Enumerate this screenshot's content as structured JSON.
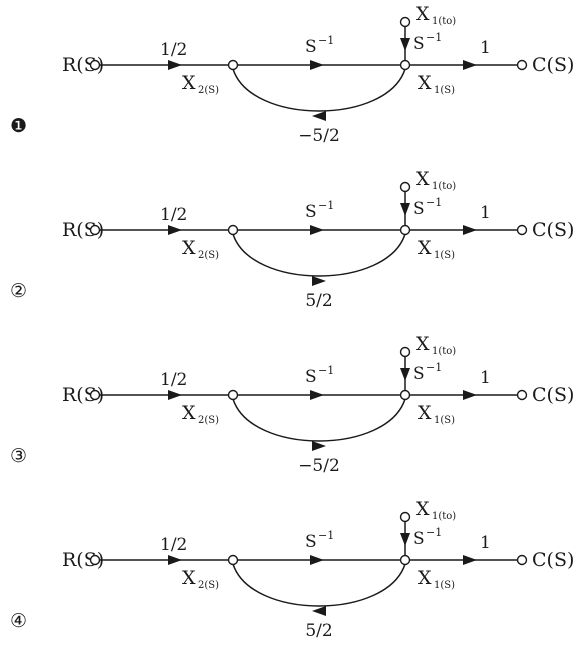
{
  "options": [
    {
      "marker": "❶",
      "input": "R(S)",
      "output": "C(S)",
      "gain_in": "1/2",
      "gain_forward": "S",
      "gain_forward_exp": "−1",
      "gain_init": "S",
      "gain_init_exp": "−1",
      "gain_out": "1",
      "state_2": "X",
      "state_2_sub": "2(S)",
      "state_1": "X",
      "state_1_sub": "1(S)",
      "init_cond": "X",
      "init_cond_sub": "1(to)",
      "feedback_gain": "−5/2",
      "loop_direction": "backward"
    },
    {
      "marker": "②",
      "input": "R(S)",
      "output": "C(S)",
      "gain_in": "1/2",
      "gain_forward": "S",
      "gain_forward_exp": "−1",
      "gain_init": "S",
      "gain_init_exp": "−1",
      "gain_out": "1",
      "state_2": "X",
      "state_2_sub": "2(S)",
      "state_1": "X",
      "state_1_sub": "1(S)",
      "init_cond": "X",
      "init_cond_sub": "1(to)",
      "feedback_gain": "5/2",
      "loop_direction": "forward"
    },
    {
      "marker": "③",
      "input": "R(S)",
      "output": "C(S)",
      "gain_in": "1/2",
      "gain_forward": "S",
      "gain_forward_exp": "−1",
      "gain_init": "S",
      "gain_init_exp": "−1",
      "gain_out": "1",
      "state_2": "X",
      "state_2_sub": "2(S)",
      "state_1": "X",
      "state_1_sub": "1(S)",
      "init_cond": "X",
      "init_cond_sub": "1(to)",
      "feedback_gain": "−5/2",
      "loop_direction": "forward"
    },
    {
      "marker": "④",
      "input": "R(S)",
      "output": "C(S)",
      "gain_in": "1/2",
      "gain_forward": "S",
      "gain_forward_exp": "−1",
      "gain_init": "S",
      "gain_init_exp": "−1",
      "gain_out": "1",
      "state_2": "X",
      "state_2_sub": "2(S)",
      "state_1": "X",
      "state_1_sub": "1(S)",
      "init_cond": "X",
      "init_cond_sub": "1(to)",
      "feedback_gain": "5/2",
      "loop_direction": "backward"
    }
  ],
  "colors": {
    "ink": "#1a1a1a",
    "background": "#ffffff"
  }
}
